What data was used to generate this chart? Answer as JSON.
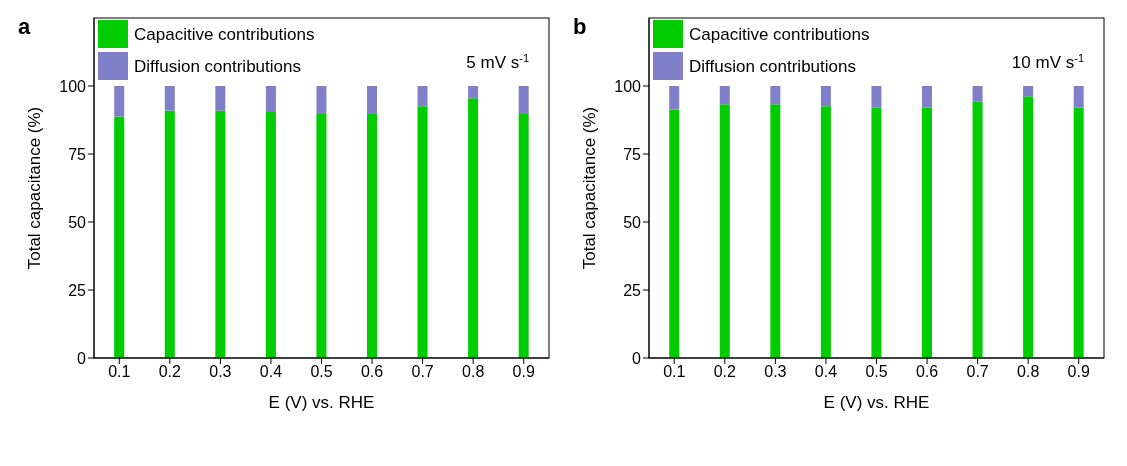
{
  "chart_data": [
    {
      "type": "bar",
      "title": "a",
      "stacked": true,
      "categories": [
        "0.1",
        "0.2",
        "0.3",
        "0.4",
        "0.5",
        "0.6",
        "0.7",
        "0.8",
        "0.9"
      ],
      "series": [
        {
          "name": "Capacitive contributions",
          "color": "#00cc00",
          "values": [
            88.8,
            91.0,
            91.0,
            90.4,
            89.7,
            89.7,
            92.6,
            95.5,
            89.7
          ]
        },
        {
          "name": "Diffusion contributions",
          "color": "#8080c8",
          "values": [
            11.2,
            9.0,
            9.0,
            9.6,
            10.3,
            10.3,
            7.4,
            4.5,
            10.3
          ]
        }
      ],
      "xlabel": "E (V) vs. RHE",
      "ylabel": "Total capacitance (%)",
      "ylim": [
        0,
        125
      ],
      "yticks": [
        0,
        25,
        50,
        75,
        100
      ],
      "legend": "top left",
      "grid": false,
      "annotations": [
        "5 mV s$^{-1}$"
      ]
    },
    {
      "type": "bar",
      "title": "b",
      "stacked": true,
      "categories": [
        "0.1",
        "0.2",
        "0.3",
        "0.4",
        "0.5",
        "0.6",
        "0.7",
        "0.8",
        "0.9"
      ],
      "series": [
        {
          "name": "Capacitive contributions",
          "color": "#00cc00",
          "values": [
            91.3,
            93.3,
            93.3,
            92.6,
            92.0,
            92.0,
            94.2,
            96.2,
            92.0
          ]
        },
        {
          "name": "Diffusion contributions",
          "color": "#8080c8",
          "values": [
            8.7,
            6.7,
            6.7,
            7.4,
            8.0,
            8.0,
            5.8,
            3.8,
            8.0
          ]
        }
      ],
      "xlabel": "E (V) vs. RHE",
      "ylabel": "Total capacitance (%)",
      "ylim": [
        0,
        125
      ],
      "yticks": [
        0,
        25,
        50,
        75,
        100
      ],
      "legend": "top left",
      "grid": false,
      "annotations": [
        "10 mV s$^{-1}$"
      ]
    }
  ]
}
